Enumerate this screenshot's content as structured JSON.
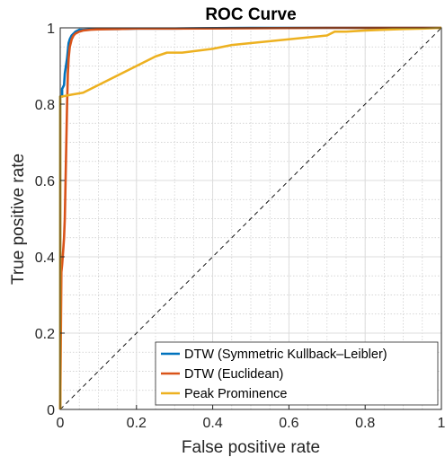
{
  "chart_data": {
    "type": "line",
    "title": "ROC Curve",
    "xlabel": "False positive rate",
    "ylabel": "True positive rate",
    "xlim": [
      0,
      1
    ],
    "ylim": [
      0,
      1
    ],
    "major_ticks": [
      0,
      0.2,
      0.4,
      0.6,
      0.8,
      1
    ],
    "major_tick_labels": [
      "0",
      "0.2",
      "0.4",
      "0.6",
      "0.8",
      "1"
    ],
    "minor_grid_step": 0.05,
    "grid": true,
    "legend_position": "bottom-right",
    "reference_line": {
      "style": "dashed",
      "color": "#000000",
      "x": [
        0,
        1
      ],
      "y": [
        0,
        1
      ]
    },
    "series": [
      {
        "name": "DTW (Symmetric Kullback–Leibler)",
        "color": "#0072BD",
        "x": [
          0,
          0,
          0.005,
          0.005,
          0.01,
          0.012,
          0.015,
          0.018,
          0.02,
          0.022,
          0.025,
          0.03,
          0.035,
          0.04,
          0.05,
          0.06,
          0.08,
          0.1,
          0.15,
          0.2,
          0.3,
          0.375,
          0.5,
          0.7,
          0.85,
          1
        ],
        "y": [
          0,
          0.82,
          0.82,
          0.84,
          0.85,
          0.88,
          0.9,
          0.92,
          0.94,
          0.96,
          0.97,
          0.98,
          0.985,
          0.99,
          0.995,
          0.995,
          0.996,
          0.997,
          0.997,
          0.998,
          0.998,
          0.999,
          1,
          1,
          1,
          1
        ]
      },
      {
        "name": "DTW (Euclidean)",
        "color": "#D95319",
        "x": [
          0,
          0.003,
          0.005,
          0.008,
          0.01,
          0.012,
          0.014,
          0.016,
          0.018,
          0.02,
          0.022,
          0.025,
          0.03,
          0.035,
          0.04,
          0.05,
          0.06,
          0.08,
          0.1,
          0.15,
          0.2,
          0.3,
          0.5,
          0.7,
          0.9,
          1
        ],
        "y": [
          0,
          0.36,
          0.38,
          0.42,
          0.45,
          0.5,
          0.6,
          0.7,
          0.8,
          0.88,
          0.92,
          0.95,
          0.97,
          0.98,
          0.985,
          0.99,
          0.993,
          0.995,
          0.996,
          0.997,
          0.998,
          0.998,
          0.999,
          1,
          1,
          1
        ]
      },
      {
        "name": "Peak Prominence",
        "color": "#EDB120",
        "x": [
          0,
          0,
          0.005,
          0.03,
          0.06,
          0.08,
          0.1,
          0.12,
          0.14,
          0.16,
          0.18,
          0.2,
          0.22,
          0.25,
          0.28,
          0.32,
          0.36,
          0.4,
          0.45,
          0.5,
          0.55,
          0.6,
          0.65,
          0.7,
          0.72,
          0.75,
          0.8,
          0.85,
          0.9,
          0.95,
          1
        ],
        "y": [
          0,
          0.82,
          0.82,
          0.825,
          0.83,
          0.84,
          0.85,
          0.86,
          0.87,
          0.88,
          0.89,
          0.9,
          0.91,
          0.925,
          0.935,
          0.935,
          0.94,
          0.945,
          0.955,
          0.96,
          0.965,
          0.97,
          0.975,
          0.98,
          0.99,
          0.99,
          0.993,
          0.995,
          0.997,
          0.998,
          1
        ]
      }
    ]
  }
}
